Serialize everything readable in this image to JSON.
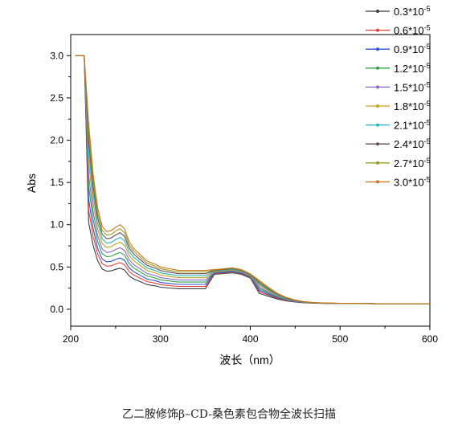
{
  "caption": "乙二胺修饰β–CD-桑色素包合物全波长扫描",
  "chart_data": {
    "type": "line",
    "xlabel": "波长（nm）",
    "ylabel": "Abs",
    "xlim": [
      200,
      600
    ],
    "ylim": [
      -0.2,
      3.25
    ],
    "xticks": [
      200,
      300,
      400,
      500,
      600
    ],
    "yticks": [
      0.0,
      0.5,
      1.0,
      1.5,
      2.0,
      2.5,
      3.0
    ],
    "ytick_labels": [
      "0.0",
      "0.5",
      "1.0",
      "1.5",
      "2.0",
      "2.5",
      "3.0"
    ],
    "legend_position": "top-right",
    "series": [
      {
        "name": "0.3*10-5",
        "base": "0.3*10",
        "sup": "-5",
        "color": "#3c3c3c",
        "scale": 0.45
      },
      {
        "name": "0.6*10-5",
        "base": "0.6*10",
        "sup": "-5",
        "color": "#e8413a",
        "scale": 0.52
      },
      {
        "name": "0.9*10-5",
        "base": "0.9*10",
        "sup": "-5",
        "color": "#2b52d6",
        "scale": 0.58
      },
      {
        "name": "1.2*10-5",
        "base": "1.2*10",
        "sup": "-5",
        "color": "#2ea34a",
        "scale": 0.65
      },
      {
        "name": "1.5*10-5",
        "base": "1.5*10",
        "sup": "-5",
        "color": "#8f63c9",
        "scale": 0.71
      },
      {
        "name": "1.8*10-5",
        "base": "1.8*10",
        "sup": "-5",
        "color": "#c4a21b",
        "scale": 0.78
      },
      {
        "name": "2.1*10-5",
        "base": "2.1*10",
        "sup": "-5",
        "color": "#22b5c4",
        "scale": 0.84
      },
      {
        "name": "2.4*10-5",
        "base": "2.4*10",
        "sup": "-5",
        "color": "#6b4d4d",
        "scale": 0.9
      },
      {
        "name": "2.7*10-5",
        "base": "2.7*10",
        "sup": "-5",
        "color": "#9a9a1e",
        "scale": 0.95
      },
      {
        "name": "3.0*10-5",
        "base": "3.0*10",
        "sup": "-5",
        "color": "#c8731c",
        "scale": 1.0
      }
    ],
    "reference_curve": {
      "x": [
        205,
        210,
        215,
        220,
        225,
        230,
        235,
        240,
        245,
        250,
        255,
        260,
        265,
        270,
        275,
        280,
        285,
        290,
        295,
        300,
        310,
        320,
        330,
        340,
        350,
        360,
        370,
        380,
        390,
        400,
        410,
        420,
        430,
        440,
        450,
        460,
        470,
        480,
        500,
        520,
        540,
        560,
        580,
        600
      ],
      "y": [
        3.0,
        3.0,
        3.0,
        2.2,
        1.6,
        1.2,
        0.98,
        0.92,
        0.93,
        0.97,
        1.0,
        0.95,
        0.8,
        0.72,
        0.67,
        0.62,
        0.57,
        0.55,
        0.53,
        0.5,
        0.48,
        0.46,
        0.46,
        0.46,
        0.46,
        0.47,
        0.48,
        0.49,
        0.47,
        0.42,
        0.34,
        0.26,
        0.19,
        0.14,
        0.11,
        0.09,
        0.08,
        0.075,
        0.07,
        0.07,
        0.065,
        0.065,
        0.065,
        0.065
      ]
    }
  }
}
